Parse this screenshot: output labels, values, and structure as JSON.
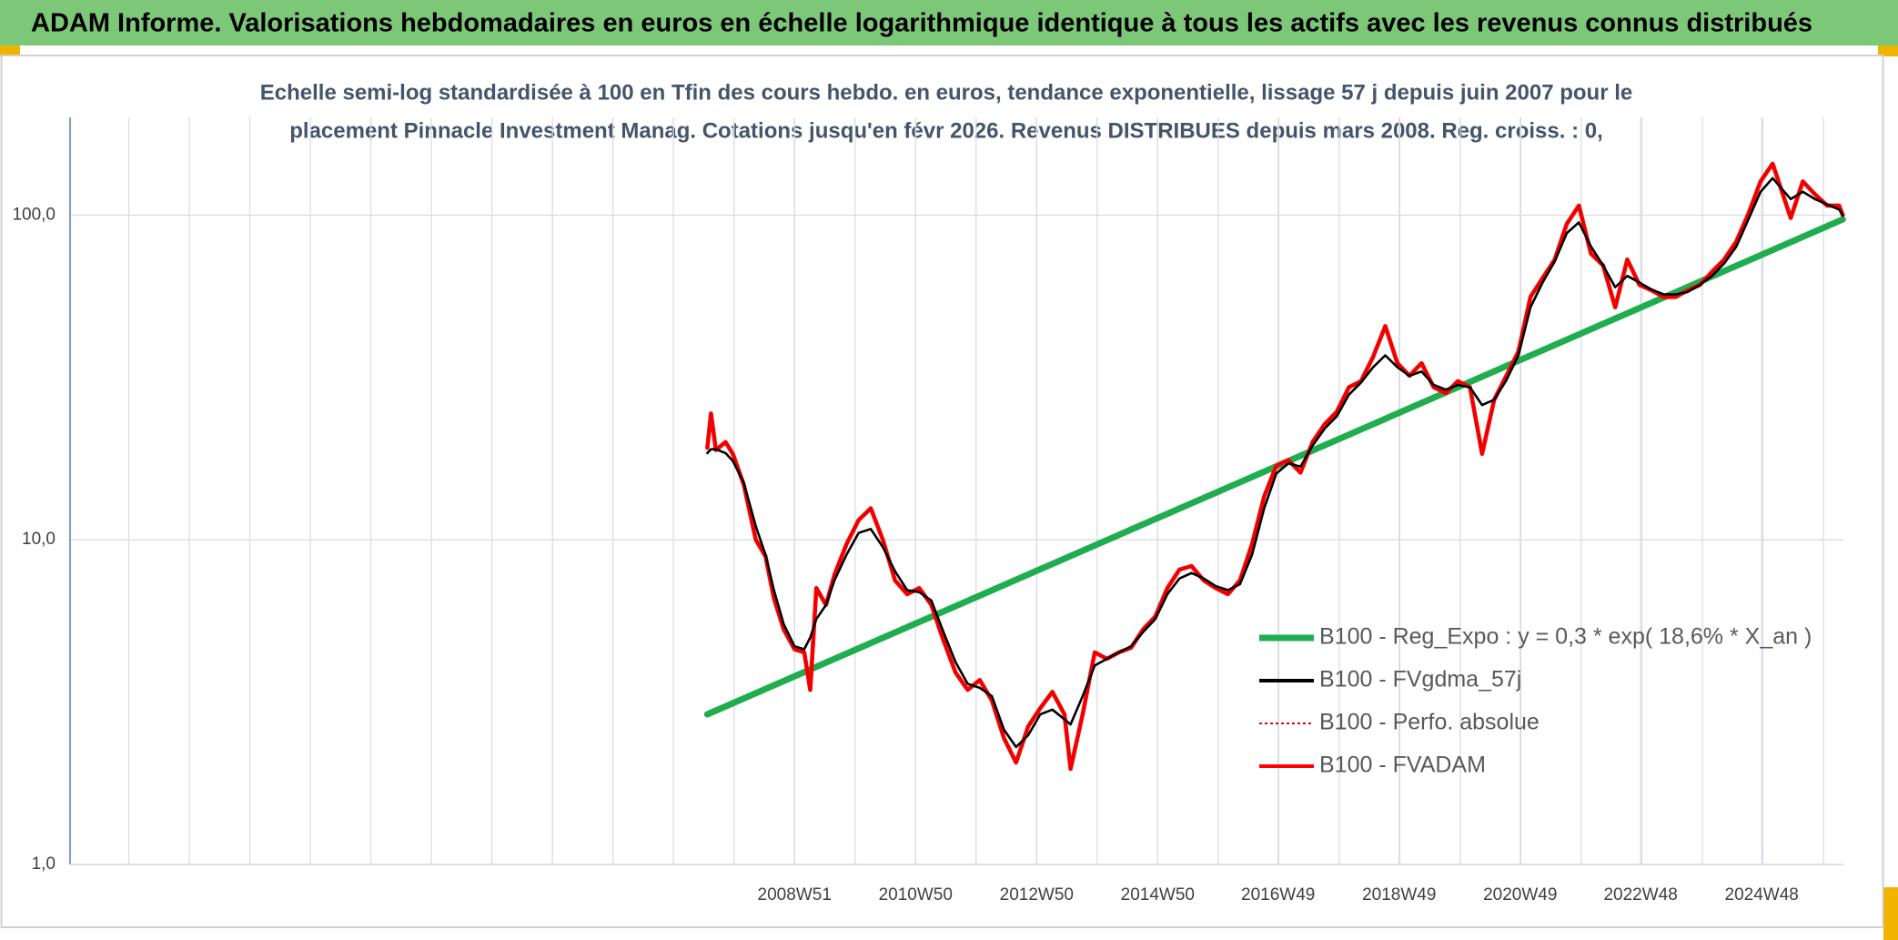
{
  "chart_data": {
    "type": "line",
    "title": "ADAM Informe. Valorisations hebdomadaires en euros en échelle logarithmique identique à tous les actifs avec les revenus connus distribués",
    "subtitle": [
      "Echelle semi-log standardisée à 100 en Tfin des cours hebdo. en euros, tendance exponentielle, lissage 57 j depuis juin 2007 pour le",
      "placement Pinnacle Investment Manag. Cotations jusqu'en févr 2026. Revenus DISTRIBUES depuis mars 2008. Reg. croiss. : 0,"
    ],
    "yscale": "log",
    "grid": true,
    "legend": "lower right",
    "xlim": [
      1997.0,
      2026.3
    ],
    "ylim": [
      1,
      200
    ],
    "yticks": [
      {
        "value": 1,
        "label": "1,0"
      },
      {
        "value": 10,
        "label": "10,0"
      },
      {
        "value": 100,
        "label": "100,0"
      }
    ],
    "xticks": [
      {
        "value": 2008.97,
        "label": "2008W51"
      },
      {
        "value": 2010.97,
        "label": "2010W50"
      },
      {
        "value": 2012.97,
        "label": "2012W50"
      },
      {
        "value": 2014.97,
        "label": "2014W50"
      },
      {
        "value": 2016.96,
        "label": "2016W49"
      },
      {
        "value": 2018.96,
        "label": "2018W49"
      },
      {
        "value": 2020.96,
        "label": "2020W49"
      },
      {
        "value": 2022.95,
        "label": "2022W48"
      },
      {
        "value": 2024.95,
        "label": "2024W48"
      }
    ],
    "series": [
      {
        "name": "B100 - Reg_Expo : y = 0,3 * exp( 18,6% *  X_an )",
        "color": "#1fad4f",
        "line_style": "solid",
        "x": [
          2007.53,
          2026.29
        ],
        "values": [
          2.9,
          97
        ]
      },
      {
        "name": "B100 - FVgdma_57j",
        "color": "#000000",
        "line_style": "solid",
        "x": [
          2007.53,
          2007.59,
          2007.67,
          2007.83,
          2007.95,
          2008.13,
          2008.33,
          2008.49,
          2008.63,
          2008.79,
          2008.97,
          2009.13,
          2009.23,
          2009.33,
          2009.49,
          2009.63,
          2009.83,
          2010.03,
          2010.23,
          2010.43,
          2010.63,
          2010.83,
          2011.03,
          2011.23,
          2011.43,
          2011.63,
          2011.83,
          2012.03,
          2012.23,
          2012.43,
          2012.63,
          2012.83,
          2013.03,
          2013.23,
          2013.43,
          2013.53,
          2013.73,
          2013.93,
          2014.13,
          2014.33,
          2014.53,
          2014.73,
          2014.93,
          2015.13,
          2015.33,
          2015.53,
          2015.73,
          2015.93,
          2016.13,
          2016.33,
          2016.53,
          2016.73,
          2016.93,
          2017.13,
          2017.33,
          2017.53,
          2017.73,
          2017.93,
          2018.13,
          2018.33,
          2018.53,
          2018.73,
          2018.93,
          2019.13,
          2019.33,
          2019.53,
          2019.73,
          2019.93,
          2020.13,
          2020.33,
          2020.53,
          2020.73,
          2020.93,
          2021.13,
          2021.33,
          2021.53,
          2021.73,
          2021.93,
          2022.13,
          2022.33,
          2022.53,
          2022.73,
          2022.93,
          2023.13,
          2023.33,
          2023.53,
          2023.73,
          2023.93,
          2024.13,
          2024.33,
          2024.53,
          2024.73,
          2024.93,
          2025.13,
          2025.43,
          2025.63,
          2025.83,
          2026.03,
          2026.23,
          2026.29
        ],
        "values": [
          18.5,
          19,
          19,
          18.5,
          17.5,
          15,
          11,
          9,
          7,
          5.5,
          4.7,
          4.6,
          5,
          5.7,
          6.3,
          7.5,
          9,
          10.5,
          10.8,
          9.5,
          8,
          7,
          6.9,
          6.5,
          5.2,
          4.2,
          3.6,
          3.5,
          3.3,
          2.6,
          2.3,
          2.5,
          2.9,
          3.0,
          2.8,
          2.7,
          3.3,
          4.1,
          4.3,
          4.5,
          4.7,
          5.2,
          5.7,
          6.8,
          7.6,
          7.9,
          7.6,
          7.2,
          7.0,
          7.3,
          9,
          12.5,
          16,
          17.2,
          16.8,
          19.5,
          22,
          24,
          28,
          30.5,
          34,
          37,
          34,
          32,
          33,
          30,
          29,
          30,
          29.5,
          26,
          27,
          31,
          37,
          52,
          62,
          72,
          88,
          95,
          80,
          70,
          60,
          65,
          62,
          59,
          57,
          57,
          58,
          61,
          65,
          71,
          80,
          97,
          118,
          130,
          112,
          118,
          112,
          108,
          104,
          100
        ]
      },
      {
        "name": "B100 - Perfo. absolue",
        "color": "#e00000",
        "line_style": "dotted",
        "x": [
          2007.53,
          2007.59,
          2007.67,
          2007.83,
          2007.95,
          2008.13,
          2008.33,
          2008.49,
          2008.63,
          2008.79,
          2008.97,
          2009.13,
          2009.23,
          2009.33,
          2009.49,
          2009.63,
          2009.83,
          2010.03,
          2010.23,
          2010.43,
          2010.63,
          2010.83,
          2011.03,
          2011.23,
          2011.43,
          2011.63,
          2011.83,
          2012.03,
          2012.23,
          2012.43,
          2012.63,
          2012.83,
          2013.03,
          2013.23,
          2013.43,
          2013.53,
          2013.73,
          2013.93,
          2014.13,
          2014.33,
          2014.53,
          2014.73,
          2014.93,
          2015.13,
          2015.33,
          2015.53,
          2015.73,
          2015.93,
          2016.13,
          2016.33,
          2016.53,
          2016.73,
          2016.93,
          2017.13,
          2017.33,
          2017.53,
          2017.73,
          2017.93,
          2018.13,
          2018.33,
          2018.53,
          2018.73,
          2018.93,
          2019.13,
          2019.33,
          2019.53,
          2019.73,
          2019.93,
          2020.13,
          2020.33,
          2020.53,
          2020.73,
          2020.93,
          2021.13,
          2021.33,
          2021.53,
          2021.73,
          2021.93,
          2022.13,
          2022.33,
          2022.53,
          2022.73,
          2022.93,
          2023.13,
          2023.33,
          2023.53,
          2023.73,
          2023.93,
          2024.13,
          2024.33,
          2024.53,
          2024.73,
          2024.93,
          2025.13,
          2025.43,
          2025.63,
          2025.83,
          2026.03,
          2026.23,
          2026.29
        ],
        "values": [
          19.2,
          24.5,
          18.9,
          20,
          18.4,
          14.8,
          10,
          8.9,
          6.6,
          5.3,
          4.6,
          4.5,
          3.45,
          7.1,
          6.3,
          7.8,
          9.7,
          11.5,
          12.5,
          10,
          7.5,
          6.8,
          7.1,
          6.3,
          4.9,
          3.9,
          3.45,
          3.7,
          3.2,
          2.45,
          2.06,
          2.66,
          3.03,
          3.4,
          2.9,
          1.97,
          2.9,
          4.5,
          4.3,
          4.5,
          4.65,
          5.3,
          5.8,
          7.1,
          8.1,
          8.3,
          7.5,
          7.1,
          6.8,
          7.5,
          9.7,
          13.6,
          16.9,
          17.6,
          16.1,
          20,
          22.7,
          24.8,
          29.5,
          30.8,
          36.6,
          45.5,
          35,
          32,
          35,
          29.5,
          28.3,
          30.8,
          29.5,
          18.4,
          27,
          32,
          38,
          56,
          64,
          73,
          94,
          107,
          76,
          70,
          52,
          73,
          61,
          58.7,
          56,
          56,
          58.7,
          61,
          67,
          73,
          83,
          101,
          127,
          144,
          98,
          127,
          116,
          107,
          107,
          100
        ]
      },
      {
        "name": "B100 - FVADAM",
        "color": "#ff0000",
        "line_style": "solid",
        "x": [
          2007.53,
          2007.59,
          2007.67,
          2007.83,
          2007.95,
          2008.13,
          2008.33,
          2008.49,
          2008.63,
          2008.79,
          2008.97,
          2009.13,
          2009.23,
          2009.33,
          2009.49,
          2009.63,
          2009.83,
          2010.03,
          2010.23,
          2010.43,
          2010.63,
          2010.83,
          2011.03,
          2011.23,
          2011.43,
          2011.63,
          2011.83,
          2012.03,
          2012.23,
          2012.43,
          2012.63,
          2012.83,
          2013.03,
          2013.23,
          2013.43,
          2013.53,
          2013.73,
          2013.93,
          2014.13,
          2014.33,
          2014.53,
          2014.73,
          2014.93,
          2015.13,
          2015.33,
          2015.53,
          2015.73,
          2015.93,
          2016.13,
          2016.33,
          2016.53,
          2016.73,
          2016.93,
          2017.13,
          2017.33,
          2017.53,
          2017.73,
          2017.93,
          2018.13,
          2018.33,
          2018.53,
          2018.73,
          2018.93,
          2019.13,
          2019.33,
          2019.53,
          2019.73,
          2019.93,
          2020.13,
          2020.33,
          2020.53,
          2020.73,
          2020.93,
          2021.13,
          2021.33,
          2021.53,
          2021.73,
          2021.93,
          2022.13,
          2022.33,
          2022.53,
          2022.73,
          2022.93,
          2023.13,
          2023.33,
          2023.53,
          2023.73,
          2023.93,
          2024.13,
          2024.33,
          2024.53,
          2024.73,
          2024.93,
          2025.13,
          2025.43,
          2025.63,
          2025.83,
          2026.03,
          2026.23,
          2026.29
        ],
        "values": [
          19.2,
          24.5,
          18.9,
          20,
          18.4,
          14.8,
          10,
          8.9,
          6.6,
          5.3,
          4.6,
          4.5,
          3.45,
          7.1,
          6.3,
          7.8,
          9.7,
          11.5,
          12.5,
          10,
          7.5,
          6.8,
          7.1,
          6.3,
          4.9,
          3.9,
          3.45,
          3.7,
          3.2,
          2.45,
          2.06,
          2.66,
          3.03,
          3.4,
          2.9,
          1.97,
          2.9,
          4.5,
          4.3,
          4.5,
          4.65,
          5.3,
          5.8,
          7.1,
          8.1,
          8.3,
          7.5,
          7.1,
          6.8,
          7.5,
          9.7,
          13.6,
          16.9,
          17.6,
          16.1,
          20,
          22.7,
          24.8,
          29.5,
          30.8,
          36.6,
          45.5,
          35,
          32,
          35,
          29.5,
          28.3,
          30.8,
          29.5,
          18.4,
          27,
          32,
          38,
          56,
          64,
          73,
          94,
          107,
          76,
          70,
          52,
          73,
          61,
          58.7,
          56,
          56,
          58.7,
          61,
          67,
          73,
          83,
          101,
          127,
          144,
          98,
          127,
          116,
          107,
          107,
          100
        ]
      }
    ]
  }
}
